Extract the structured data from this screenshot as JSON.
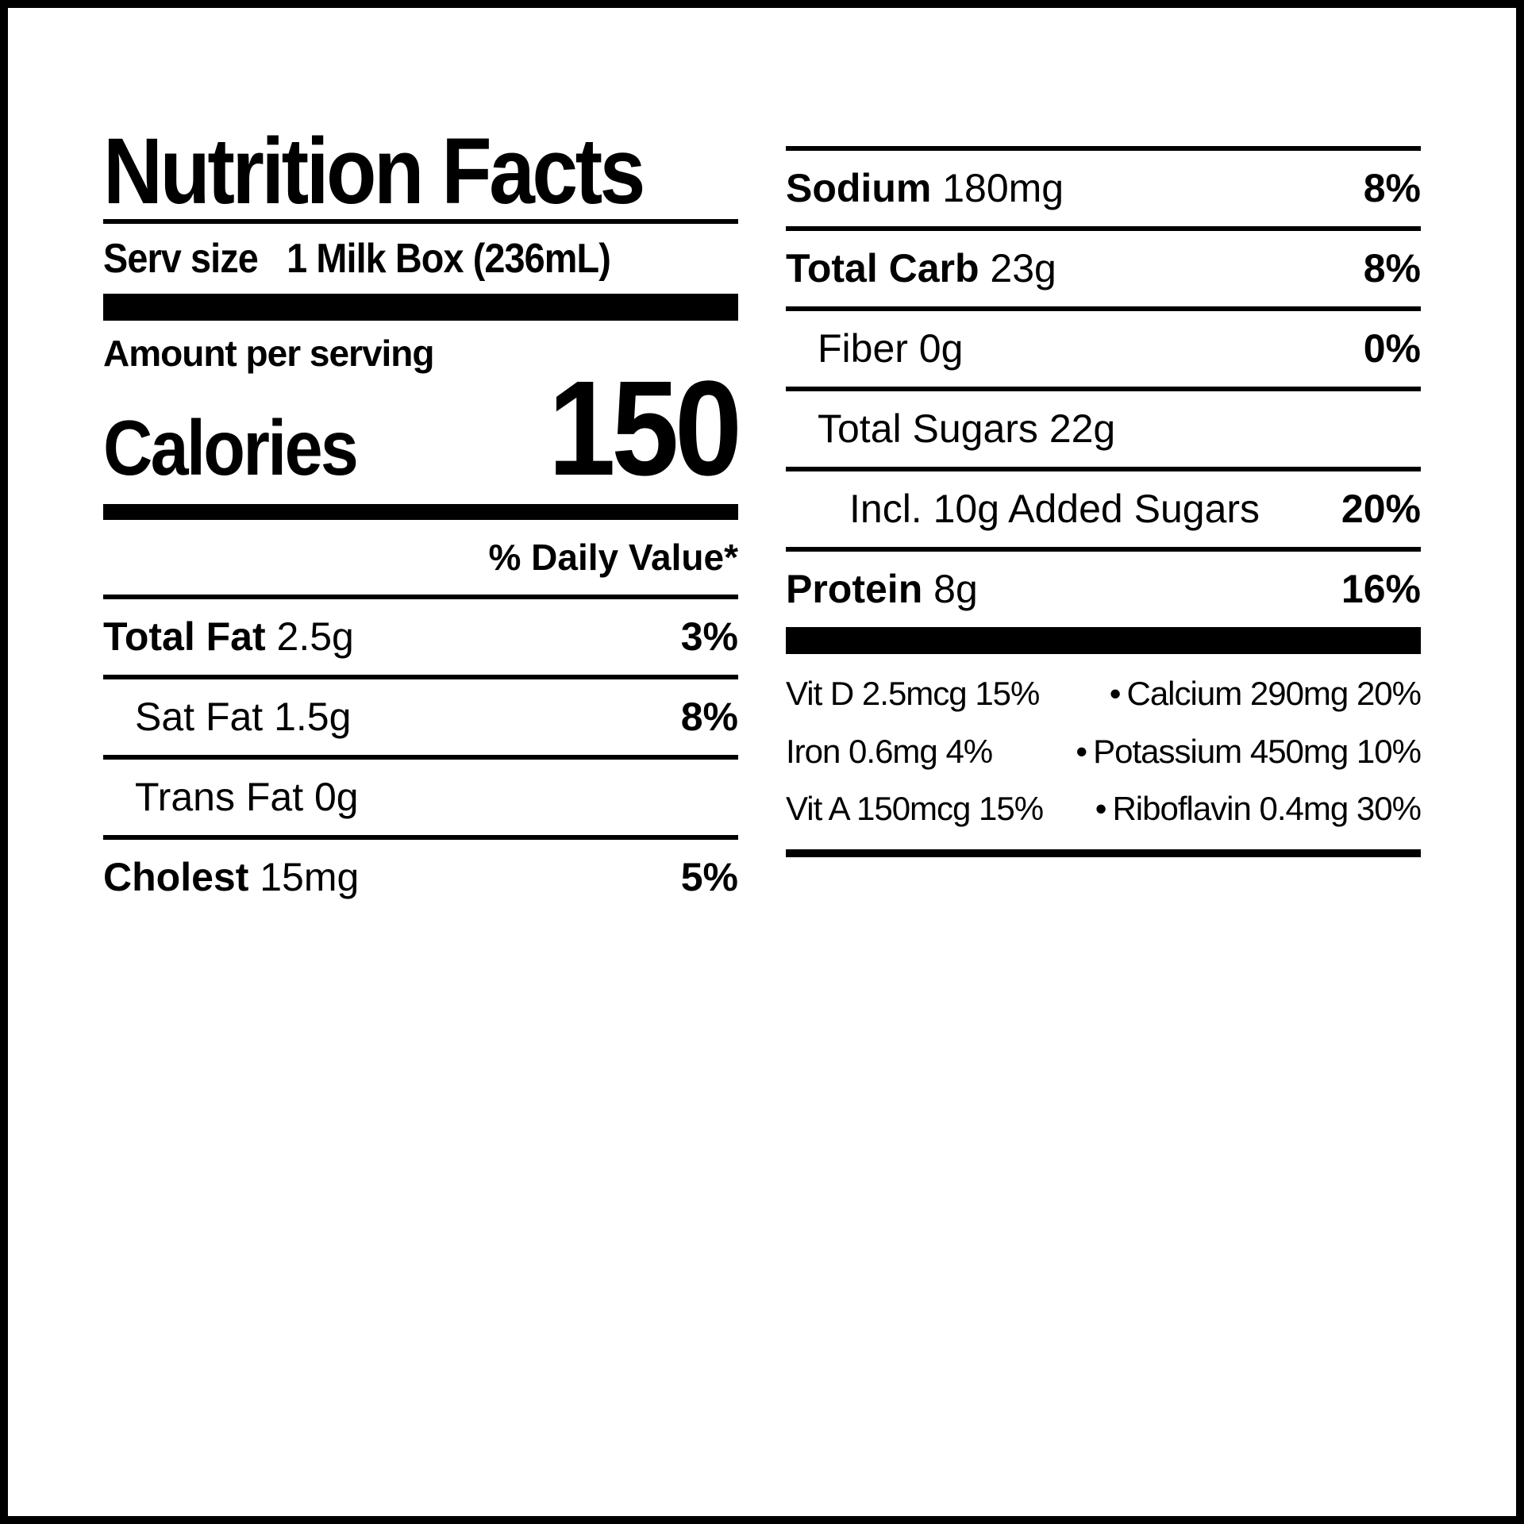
{
  "title": "Nutrition Facts",
  "serv_label": "Serv size",
  "serv_value": "1 Milk Box (236mL)",
  "amount_per_serving": "Amount per serving",
  "calories_label": "Calories",
  "calories_value": "150",
  "daily_value_header": "% Daily Value*",
  "left_nutrients": [
    {
      "label": "Total Fat",
      "amount": "2.5g",
      "dv": "3%",
      "bold": true,
      "indent": 0,
      "rule_after": true
    },
    {
      "label": "Sat Fat",
      "amount": "1.5g",
      "dv": "8%",
      "bold": false,
      "indent": 1,
      "rule_after": true
    },
    {
      "label": "Trans Fat",
      "amount": "0g",
      "dv": "",
      "bold": false,
      "indent": 1,
      "rule_after": true
    },
    {
      "label": "Cholest",
      "amount": "15mg",
      "dv": "5%",
      "bold": true,
      "indent": 0,
      "rule_after": false
    }
  ],
  "right_nutrients": [
    {
      "label": "Sodium",
      "amount": "180mg",
      "dv": "8%",
      "bold": true,
      "indent": 0,
      "rule_before": true,
      "rule_after": true
    },
    {
      "label": "Total Carb",
      "amount": "23g",
      "dv": "8%",
      "bold": true,
      "indent": 0,
      "rule_after": true
    },
    {
      "label": "Fiber",
      "amount": "0g",
      "dv": "0%",
      "bold": false,
      "indent": 1,
      "rule_after": true
    },
    {
      "label": "Total Sugars",
      "amount": "22g",
      "dv": "",
      "bold": false,
      "indent": 1,
      "rule_after": true
    },
    {
      "label": "Incl. 10g Added Sugars",
      "amount": "",
      "dv": "20%",
      "bold": false,
      "indent": 2,
      "rule_after": true
    },
    {
      "label": "Protein",
      "amount": "8g",
      "dv": "16%",
      "bold": true,
      "indent": 0,
      "rule_after": false
    }
  ],
  "vitamins": [
    {
      "left": "Vit D 2.5mcg 15%",
      "right": "Calcium 290mg 20%"
    },
    {
      "left": "Iron 0.6mg 4%",
      "right": "Potassium 450mg 10%"
    },
    {
      "left": "Vit A 150mcg 15%",
      "right": "Riboflavin 0.4mg 30%"
    }
  ],
  "colors": {
    "text": "#000000",
    "background": "#ffffff",
    "rule": "#000000"
  },
  "type": "table"
}
